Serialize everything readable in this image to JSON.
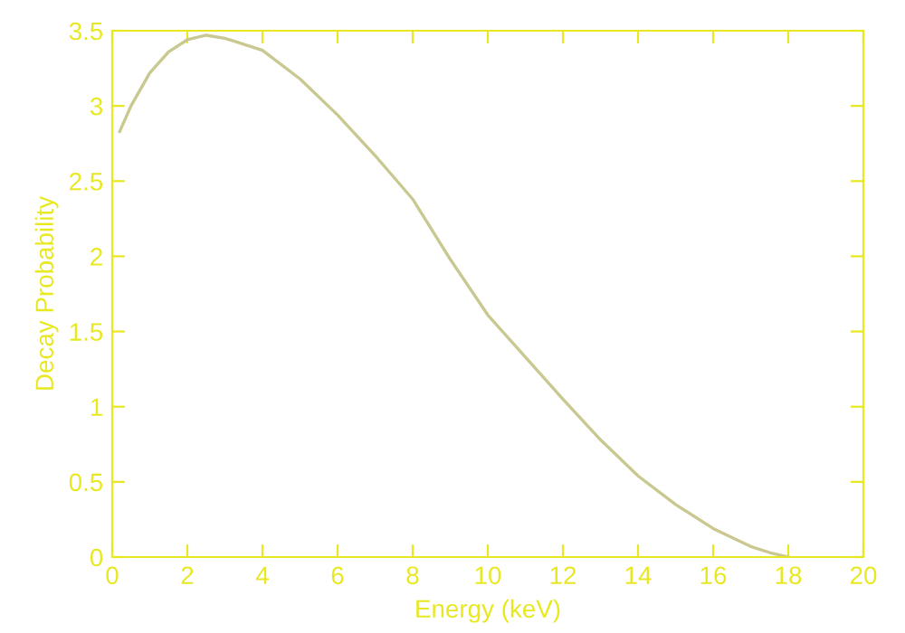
{
  "chart_data": {
    "type": "line",
    "xlabel": "Energy (keV)",
    "ylabel": "Decay Probability",
    "x": [
      0.2,
      0.5,
      1,
      1.5,
      2,
      2.5,
      3,
      4,
      5,
      6,
      7,
      8,
      9,
      10,
      11,
      12,
      13,
      14,
      15,
      16,
      17,
      17.5,
      18
    ],
    "series": [
      {
        "color": "#c8c890",
        "values": [
          2.83,
          3.0,
          3.22,
          3.36,
          3.44,
          3.47,
          3.45,
          3.37,
          3.18,
          2.94,
          2.67,
          2.38,
          1.98,
          1.61,
          1.33,
          1.05,
          0.78,
          0.54,
          0.35,
          0.19,
          0.07,
          0.03,
          0.0
        ]
      }
    ],
    "xlim": [
      0,
      20
    ],
    "ylim": [
      0,
      3.5
    ],
    "xticks": [
      0,
      2,
      4,
      6,
      8,
      10,
      12,
      14,
      16,
      18,
      20
    ],
    "yticks": [
      0,
      0.5,
      1,
      1.5,
      2,
      2.5,
      3,
      3.5
    ],
    "grid": false,
    "legend": false,
    "marker": "none",
    "line_style": "solid"
  }
}
